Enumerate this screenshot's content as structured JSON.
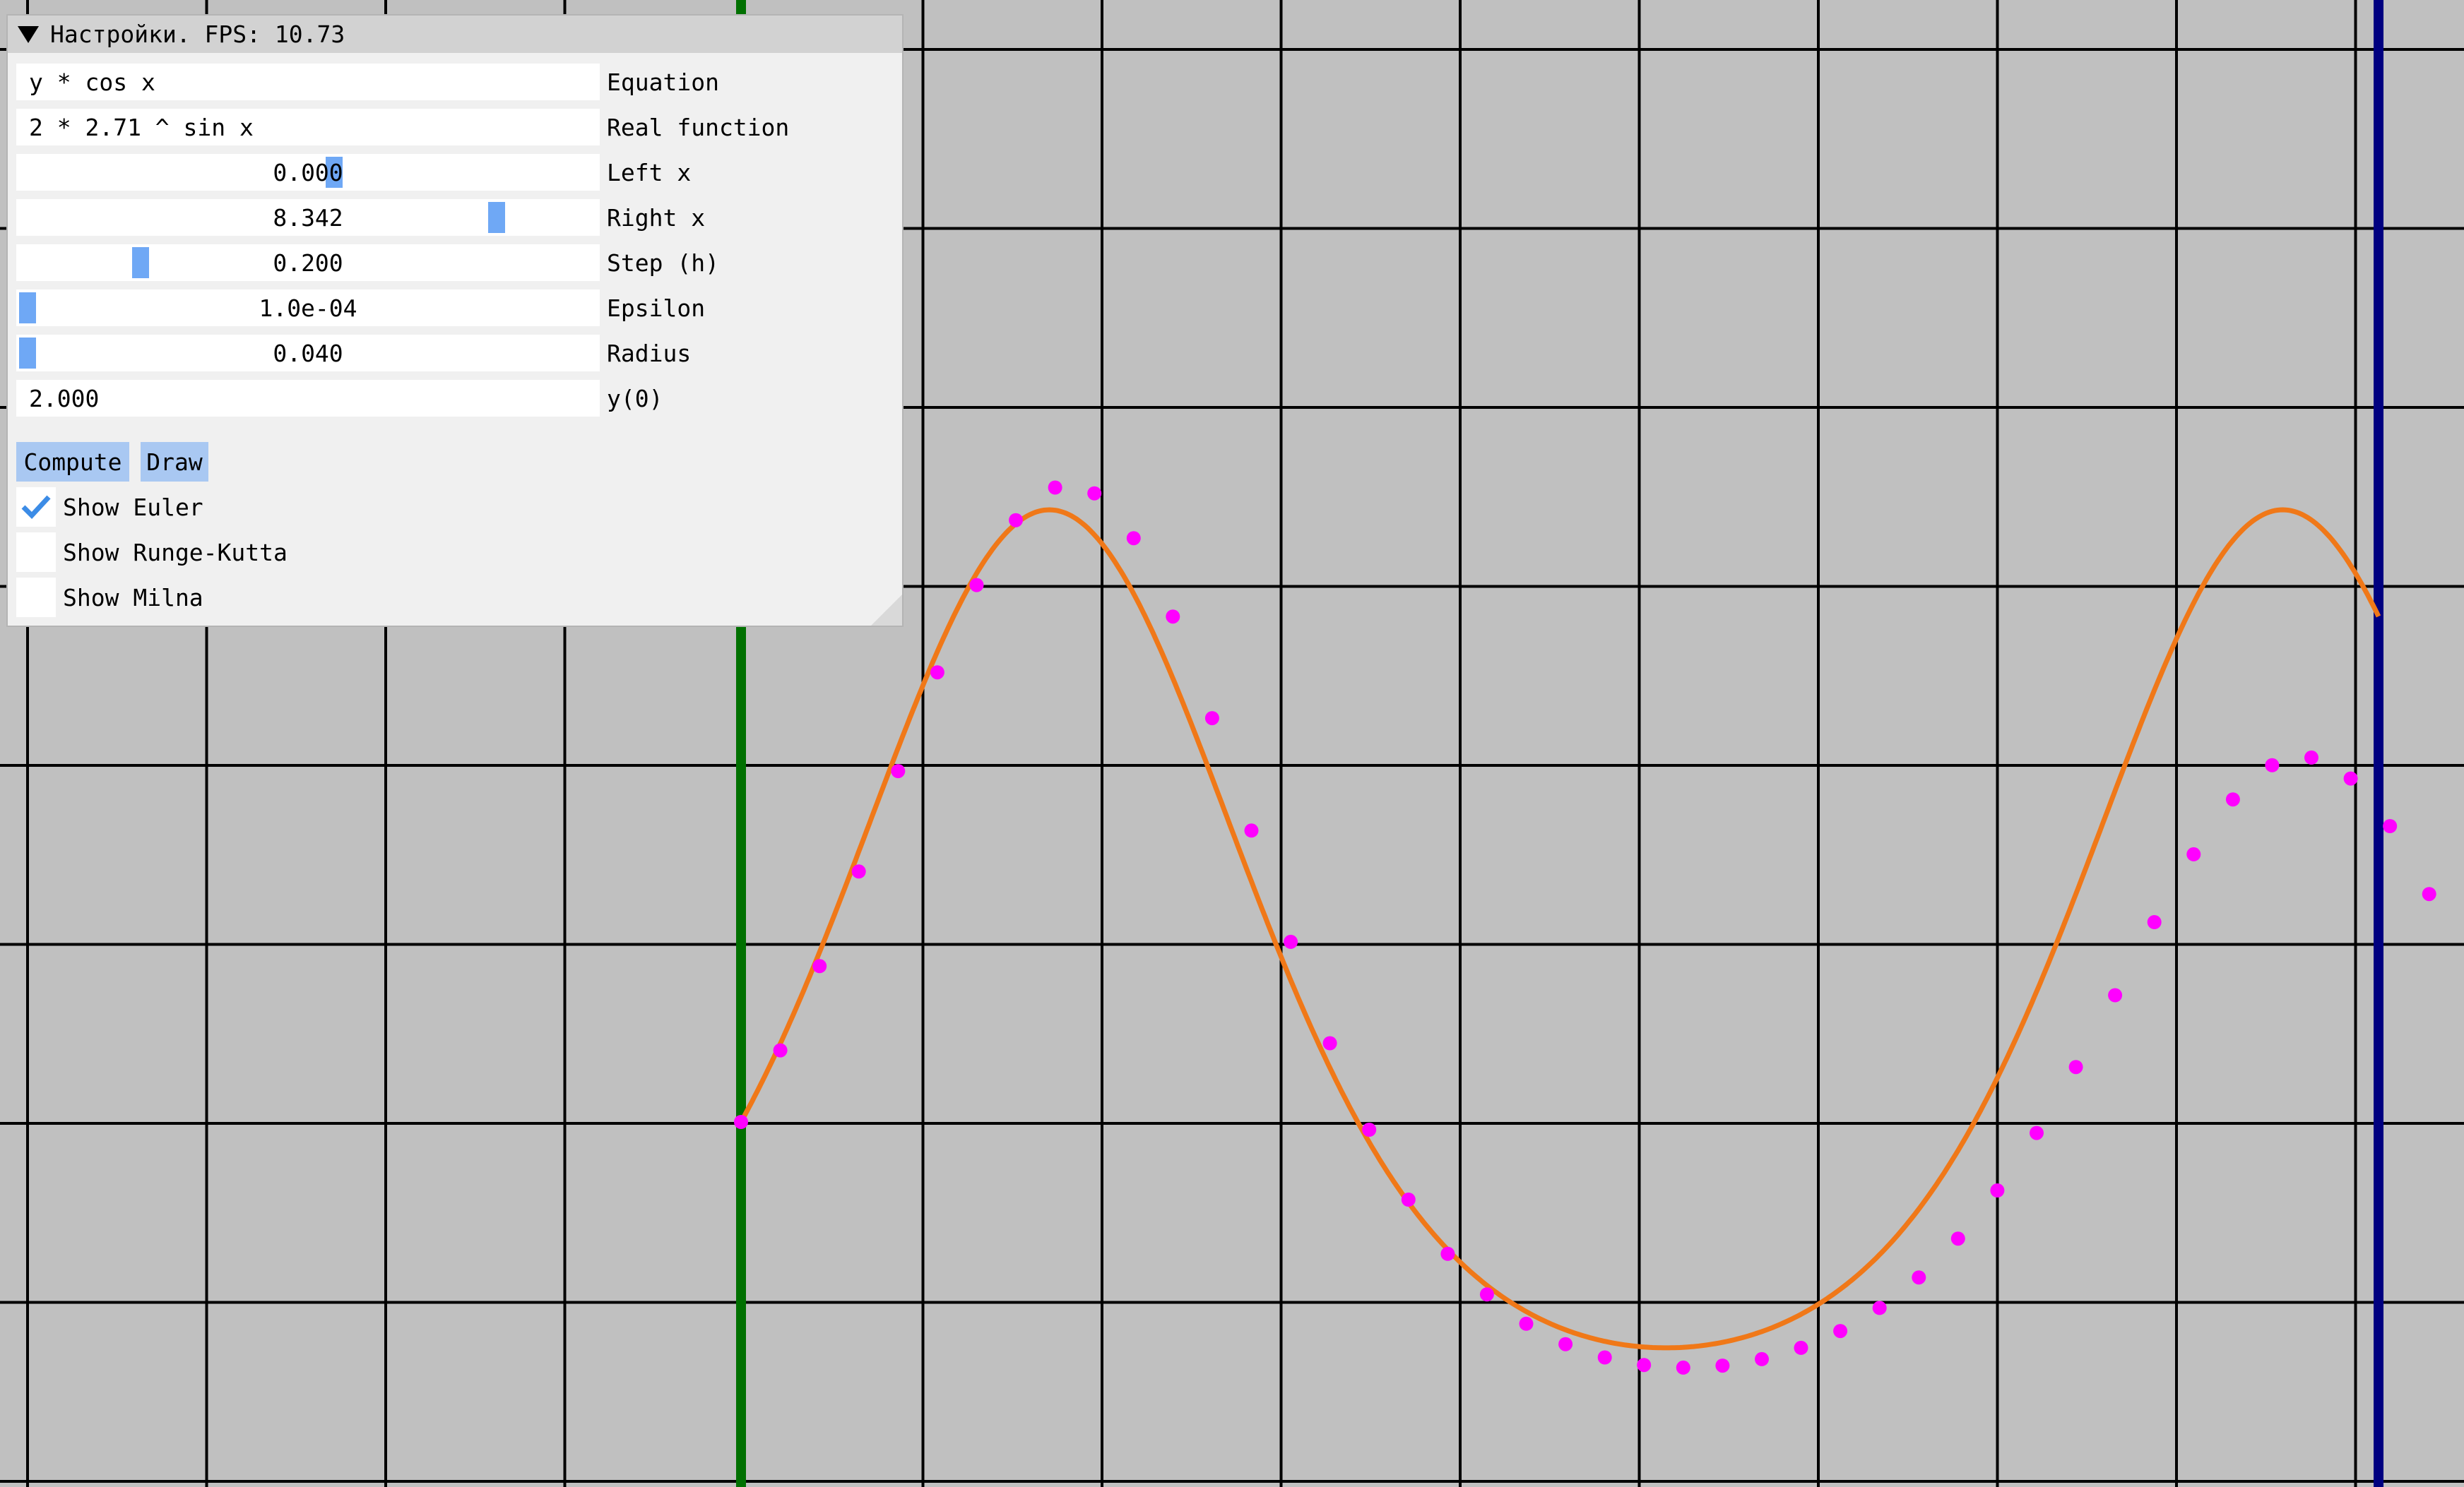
{
  "panel": {
    "title": "Настройки. FPS: 10.73",
    "fields": [
      {
        "kind": "text",
        "value": "y * cos x",
        "label": "Equation"
      },
      {
        "kind": "text",
        "value": "2 * 2.71 ^ sin x",
        "label": "Real function"
      },
      {
        "kind": "slider",
        "value": "0.000",
        "label": "Left x"
      },
      {
        "kind": "slider",
        "value": "8.342",
        "label": "Right x"
      },
      {
        "kind": "slider",
        "value": "0.200",
        "label": "Step (h)"
      },
      {
        "kind": "slider",
        "value": "1.0e-04",
        "label": "Epsilon"
      },
      {
        "kind": "slider",
        "value": "0.040",
        "label": "Radius"
      },
      {
        "kind": "text",
        "value": "2.000",
        "label": "y(0)"
      }
    ],
    "buttons": {
      "compute": "Compute",
      "draw": "Draw"
    },
    "checkboxes": [
      {
        "label": "Show Euler",
        "checked": true
      },
      {
        "label": "Show Runge-Kutta",
        "checked": false
      },
      {
        "label": "Show Milna",
        "checked": false
      }
    ]
  },
  "colors": {
    "background": "#c0c0c0",
    "grid": "#000000",
    "left_boundary": "#007000",
    "right_boundary": "#000080",
    "real_function": "#f07818",
    "euler_points": "#ff00ff",
    "slider_grab": "#6fa8f5",
    "button": "#a9c8f2",
    "checkmark": "#3c8ce6"
  },
  "chart_data": {
    "type": "line",
    "series": [
      {
        "values": "y = 2 * 2.71 ^ sin x",
        "x_range": [
          0,
          8.342
        ]
      },
      {
        "values": "Euler, h = 0.200",
        "x_range": [
          0,
          8.342
        ]
      }
    ],
    "left_x": 0.0,
    "right_x": 8.342,
    "step": 0.2,
    "y0": 2.0,
    "grid": true
  }
}
